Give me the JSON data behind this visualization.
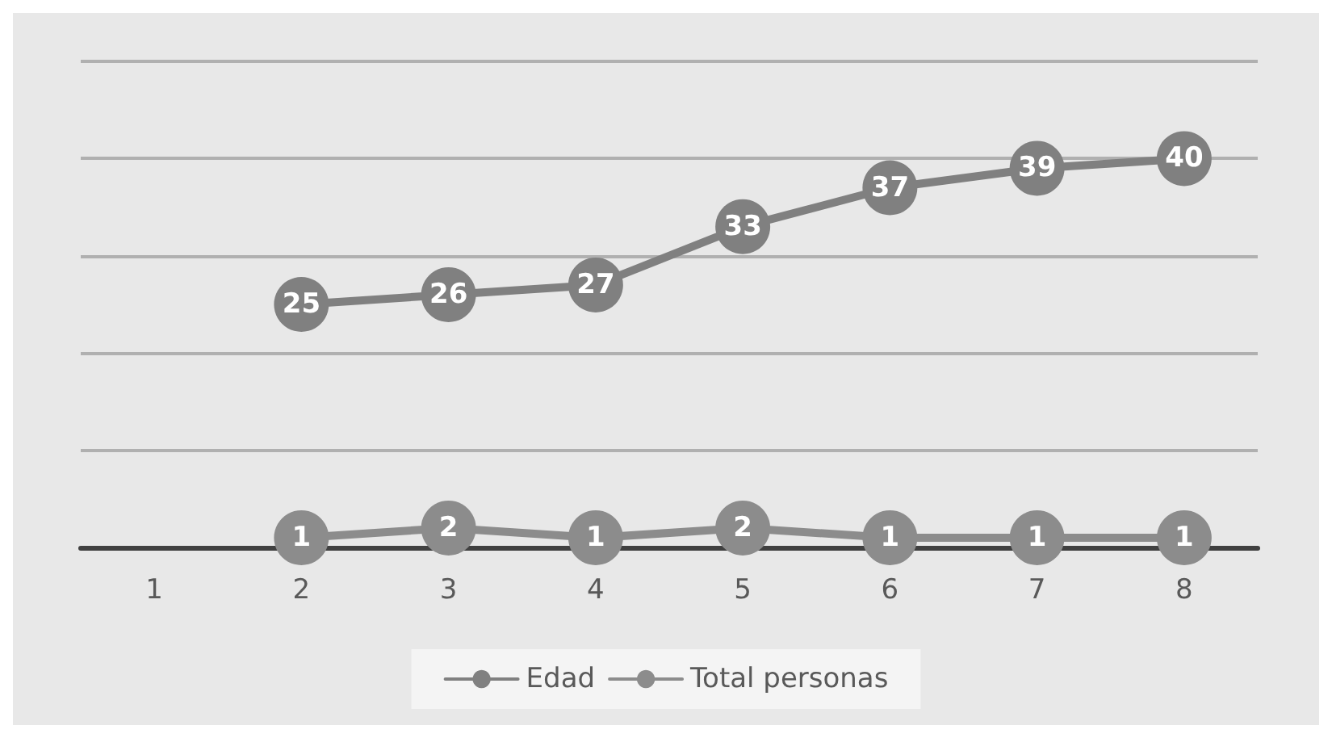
{
  "chart_data": {
    "type": "line",
    "categories": [
      "1",
      "2",
      "3",
      "4",
      "5",
      "6",
      "7",
      "8"
    ],
    "series": [
      {
        "name": "Edad",
        "color": "#808080",
        "values": [
          null,
          25,
          26,
          27,
          33,
          37,
          39,
          40
        ]
      },
      {
        "name": "Total personas",
        "color": "#8c8c8c",
        "values": [
          null,
          1,
          2,
          1,
          2,
          1,
          1,
          1
        ]
      }
    ],
    "ylim": [
      0,
      50
    ],
    "yticks": [
      {
        "value": 0,
        "label": null
      },
      {
        "value": 10,
        "label": null
      },
      {
        "value": 20,
        "label": null
      },
      {
        "value": 30,
        "label": null
      },
      {
        "value": 40,
        "label": null
      },
      {
        "value": 50,
        "label": null
      }
    ],
    "tick_labels": "x",
    "grid": "y",
    "legend": "bottom",
    "marker": "circle",
    "line_style": "solid",
    "data_labels": true
  }
}
